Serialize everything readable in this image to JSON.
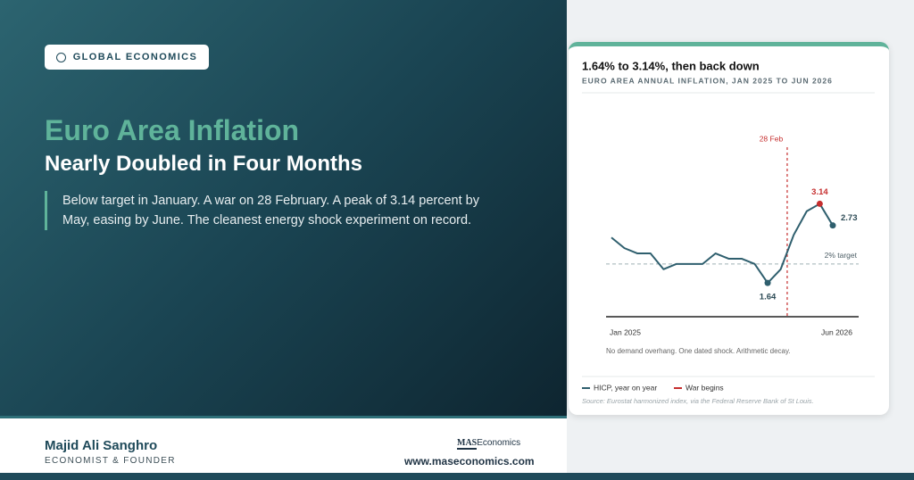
{
  "header": {
    "badge": "GLOBAL ECONOMICS",
    "title_line1": "Euro Area Inflation",
    "title_line2": "Nearly Doubled in Four Months",
    "description": "Below target in January. A war on 28 February. A peak of 3.14 percent by May, easing by June. The cleanest energy shock experiment on record."
  },
  "footer": {
    "name": "Majid Ali Sanghro",
    "role": "ECONOMIST & FOUNDER",
    "logo_mark": "MAS",
    "logo_text": "Economics",
    "url": "www.maseconomics.com"
  },
  "chart_data": {
    "type": "line",
    "title": "1.64% to 3.14%, then back down",
    "subtitle": "EURO AREA ANNUAL INFLATION, JAN 2025 TO JUN 2026",
    "categories": [
      "Jan 2025",
      null,
      null,
      null,
      null,
      null,
      null,
      null,
      null,
      null,
      null,
      null,
      null,
      null,
      null,
      null,
      null,
      "Jun 2026"
    ],
    "series": [
      {
        "name": "HICP, year on year",
        "color": "#2f5f6e",
        "values": [
          2.5,
          2.3,
          2.2,
          2.2,
          1.9,
          2.0,
          2.0,
          2.0,
          2.2,
          2.1,
          2.1,
          2.0,
          1.64,
          1.9,
          2.55,
          3.0,
          3.14,
          2.73
        ],
        "value_labels": [
          null,
          null,
          null,
          null,
          null,
          null,
          null,
          null,
          null,
          null,
          null,
          null,
          "1.64",
          null,
          null,
          null,
          "3.14",
          "2.73"
        ]
      }
    ],
    "peak_color": "#c62f2f",
    "ylim": [
      1.0,
      4.5
    ],
    "target": {
      "value": 2,
      "label": "2% target"
    },
    "event": {
      "x_index": 13.5,
      "label": "28 Feb",
      "legend": "War begins",
      "color": "#c62f2f"
    },
    "note": "No demand overhang. One dated shock. Arithmetic decay.",
    "source": "Source: Eurostat harmonized index, via the Federal Reserve Bank of St Louis."
  }
}
